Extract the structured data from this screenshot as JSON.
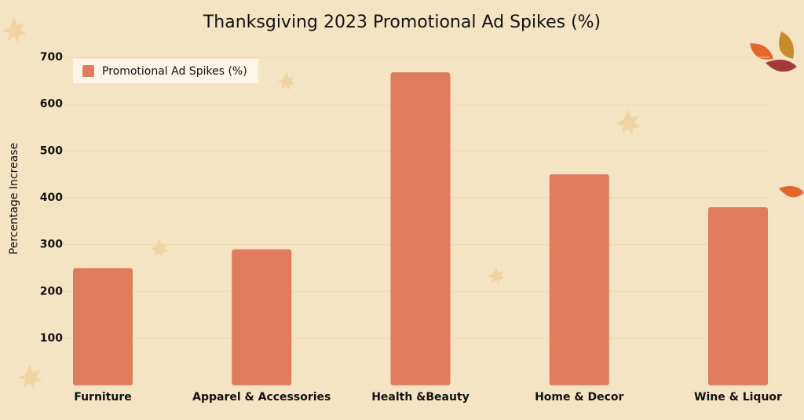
{
  "chart_data": {
    "type": "bar",
    "title": "Thanksgiving 2023  Promotional Ad Spikes (%)",
    "y_label": "Percentage Increase",
    "categories": [
      "Furniture",
      "Apparel & Accessories",
      "Health &Beauty",
      "Home & Decor",
      "Wine & Liquor"
    ],
    "series": [
      {
        "name": "Promotional Ad Spikes (%)",
        "color": "#e07b5d",
        "values": [
          250,
          290,
          668,
          450,
          380
        ]
      }
    ],
    "ylim": [
      0,
      700
    ],
    "yticks": [
      100,
      200,
      300,
      400,
      500,
      600,
      700
    ],
    "grid": true,
    "legend": "top-left"
  }
}
